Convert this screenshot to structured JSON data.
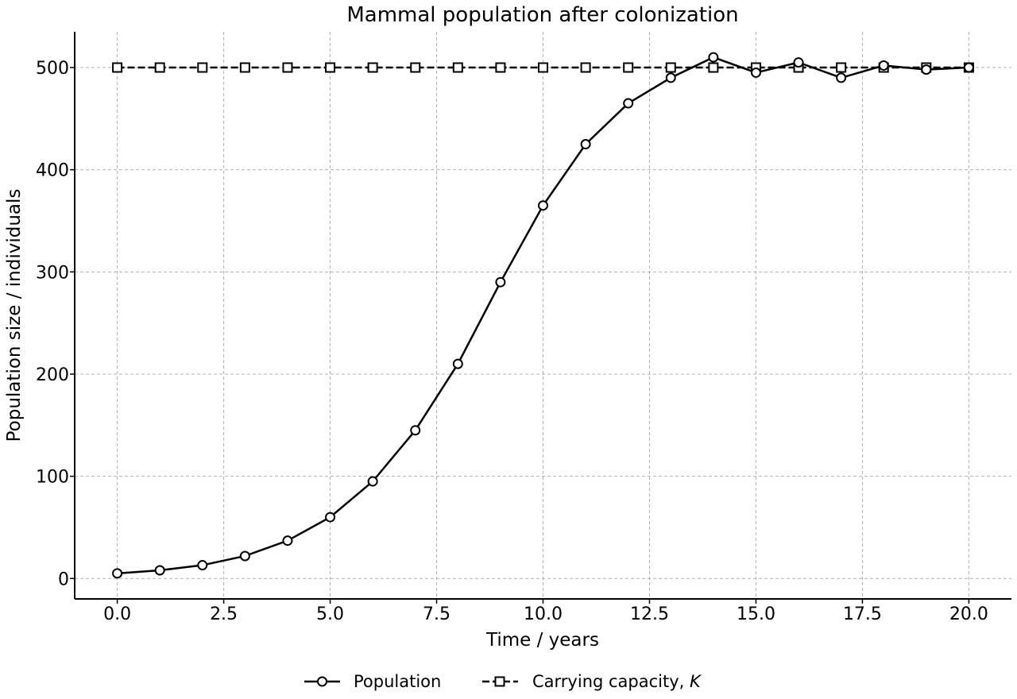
{
  "chart_data": {
    "type": "line",
    "title": "Mammal population after colonization",
    "xlabel": "Time / years",
    "ylabel": "Population size / individuals",
    "xlim": [
      -1,
      21
    ],
    "ylim": [
      -20,
      535
    ],
    "xticks": [
      0.0,
      2.5,
      5.0,
      7.5,
      10.0,
      12.5,
      15.0,
      17.5,
      20.0
    ],
    "xtick_labels": [
      "0.0",
      "2.5",
      "5.0",
      "7.5",
      "10.0",
      "12.5",
      "15.0",
      "17.5",
      "20.0"
    ],
    "yticks": [
      0,
      100,
      200,
      300,
      400,
      500
    ],
    "ytick_labels": [
      "0",
      "100",
      "200",
      "300",
      "400",
      "500"
    ],
    "grid": true,
    "legend_position": "bottom-center",
    "x": [
      0,
      1,
      2,
      3,
      4,
      5,
      6,
      7,
      8,
      9,
      10,
      11,
      12,
      13,
      14,
      15,
      16,
      17,
      18,
      19,
      20
    ],
    "series": [
      {
        "name": "Population",
        "style": "solid",
        "marker": "circle",
        "color": "#000000",
        "values": [
          5,
          8,
          13,
          22,
          37,
          60,
          95,
          145,
          210,
          290,
          365,
          425,
          465,
          490,
          510,
          495,
          505,
          490,
          502,
          498,
          500
        ]
      },
      {
        "name": "Carrying capacity, ",
        "name_italic": "K",
        "style": "dashed",
        "marker": "square",
        "color": "#000000",
        "values": [
          500,
          500,
          500,
          500,
          500,
          500,
          500,
          500,
          500,
          500,
          500,
          500,
          500,
          500,
          500,
          500,
          500,
          500,
          500,
          500,
          500
        ]
      }
    ]
  }
}
